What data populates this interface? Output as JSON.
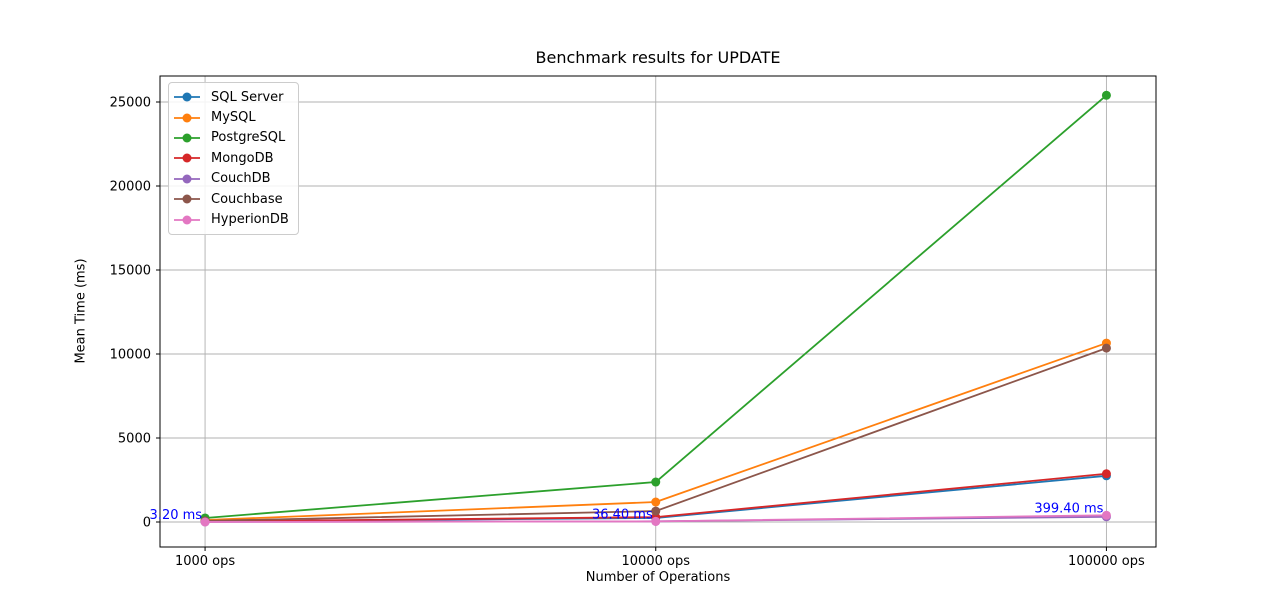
{
  "chart_data": {
    "type": "line",
    "title": "Benchmark results for UPDATE",
    "xlabel": "Number of Operations",
    "ylabel": "Mean Time (ms)",
    "categories": [
      "1000 ops",
      "10000 ops",
      "100000 ops"
    ],
    "series": [
      {
        "name": "SQL Server",
        "color": "#1f77b4",
        "values": [
          27,
          240,
          2750
        ]
      },
      {
        "name": "MySQL",
        "color": "#ff7f0e",
        "values": [
          115,
          1190,
          10650
        ]
      },
      {
        "name": "PostgreSQL",
        "color": "#2ca02c",
        "values": [
          240,
          2380,
          25400
        ]
      },
      {
        "name": "MongoDB",
        "color": "#d62728",
        "values": [
          29,
          290,
          2870
        ]
      },
      {
        "name": "CouchDB",
        "color": "#9467bd",
        "values": [
          4,
          40,
          310
        ]
      },
      {
        "name": "Couchbase",
        "color": "#8c564b",
        "values": [
          65,
          650,
          10350
        ]
      },
      {
        "name": "HyperionDB",
        "color": "#e377c2",
        "values": [
          3.2,
          36.4,
          399.4
        ]
      }
    ],
    "annotations": [
      {
        "text": "3.20 ms",
        "series": "HyperionDB",
        "x_index": 0
      },
      {
        "text": "36.40 ms",
        "series": "HyperionDB",
        "x_index": 1
      },
      {
        "text": "399.40 ms",
        "series": "HyperionDB",
        "x_index": 2
      }
    ],
    "annotation_color": "#0000ff",
    "yticks": [
      0,
      5000,
      10000,
      15000,
      20000,
      25000
    ],
    "ylim": [
      -1488,
      26548
    ],
    "xlim": [
      -0.1,
      2.11
    ],
    "grid": true,
    "grid_color": "#b0b0b0",
    "spine_color": "#000000",
    "legend_position": "upper left"
  }
}
